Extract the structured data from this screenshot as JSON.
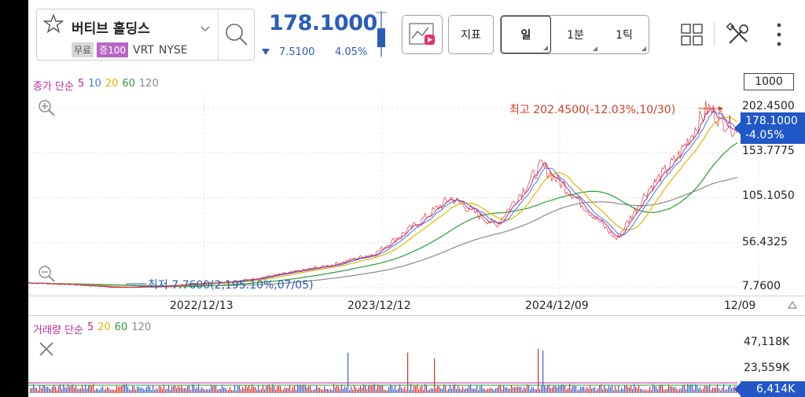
{
  "stock": {
    "name": "버티브 홀딩스",
    "tags": [
      "무료",
      "증100"
    ],
    "ticker": "VRT",
    "exchange": "NYSE"
  },
  "quote": {
    "price": "178.1000",
    "change": "7.5100",
    "change_pct": "4.05%",
    "direction": "down",
    "color": "#2a5db8"
  },
  "toolbar": {
    "indicator_label": "지표",
    "periods": [
      {
        "label": "일",
        "active": true
      },
      {
        "label": "1분",
        "active": false
      },
      {
        "label": "1틱",
        "active": false
      }
    ],
    "icons": [
      "chart-video-icon",
      "grid-icon",
      "tools-icon",
      "more-icon"
    ]
  },
  "chart": {
    "ma_legend": [
      {
        "text": "종가 단순",
        "color": "#c0259b"
      },
      {
        "text": "5",
        "color": "#c0259b"
      },
      {
        "text": "10",
        "color": "#3d7be0"
      },
      {
        "text": "20",
        "color": "#e8b400"
      },
      {
        "text": "60",
        "color": "#2e9a3a"
      },
      {
        "text": "120",
        "color": "#888888"
      }
    ],
    "range_box": "1000",
    "y_axis": [
      "202.4500",
      "153.7775",
      "105.1050",
      "56.4325",
      "7.7600"
    ],
    "current_price_box": {
      "price": "178.1000",
      "pct": "-4.05%"
    },
    "high_annotation": "최고 202.4500(-12.03%,10/30)",
    "low_annotation": "최저 7.7600(2,195.10%,07/05)",
    "x_axis": [
      "2022/12/13",
      "2023/12/12",
      "2024/12/09",
      "12/09"
    ]
  },
  "volume": {
    "legend": [
      {
        "text": "거래량 단순",
        "color": "#c0259b"
      },
      {
        "text": "5",
        "color": "#c0259b"
      },
      {
        "text": "20",
        "color": "#e8b400"
      },
      {
        "text": "60",
        "color": "#2e9a3a"
      },
      {
        "text": "120",
        "color": "#888888"
      }
    ],
    "y_axis": [
      "47,118K",
      "23,559K"
    ],
    "current_volume": "6,414K"
  },
  "chart_data": {
    "type": "line",
    "title": "",
    "x_ticks": [
      "2022/12/13",
      "2023/12/12",
      "2024/12/09",
      "12/09"
    ],
    "ylim": [
      7.76,
      202.45
    ],
    "series": [
      {
        "name": "",
        "x": [
          "2022-01",
          "2022-04",
          "2022-07",
          "2022-10",
          "2022-12",
          "2023-03",
          "2023-06",
          "2023-09",
          "2023-12",
          "2024-03",
          "2024-05",
          "2024-08",
          "2024-11",
          "2025-01",
          "2025-04",
          "2025-06",
          "2025-08",
          "2025-10",
          "2025-12"
        ],
        "values": [
          13,
          11,
          8,
          9,
          12,
          15,
          23,
          32,
          45,
          80,
          105,
          75,
          140,
          110,
          60,
          112,
          148,
          202,
          178
        ]
      }
    ],
    "volume_ylim": [
      0,
      47118
    ]
  }
}
